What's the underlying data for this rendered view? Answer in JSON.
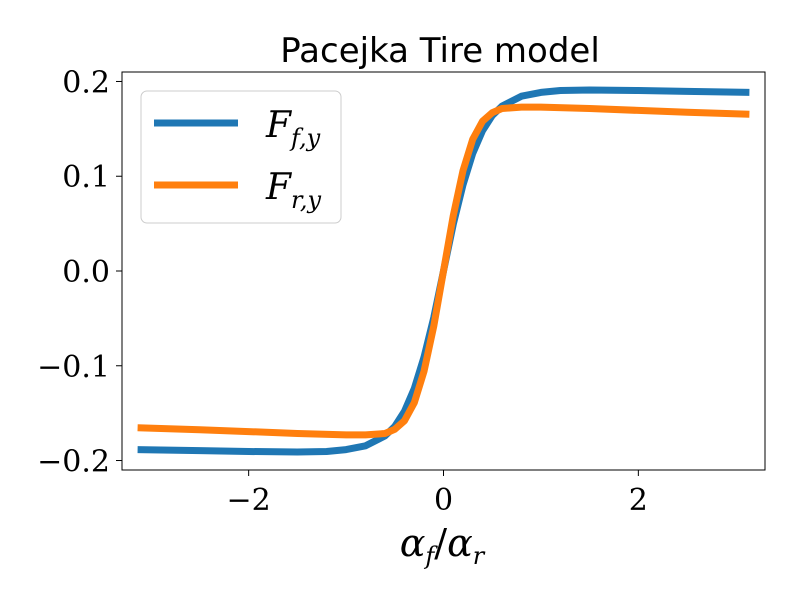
{
  "chart_data": {
    "type": "line",
    "title": "Pacejka Tire model",
    "xlabel": "αf/αr",
    "ylabel": "",
    "xlim": [
      -3.3,
      3.3
    ],
    "ylim": [
      -0.21,
      0.21
    ],
    "xticks": [
      -2,
      0,
      2
    ],
    "xtick_labels": [
      "−2",
      "0",
      "2"
    ],
    "yticks": [
      -0.2,
      -0.1,
      0.0,
      0.1,
      0.2
    ],
    "ytick_labels": [
      "−0.2",
      "−0.1",
      "0.0",
      "0.1",
      "0.2"
    ],
    "grid": false,
    "legend_position": "upper-left",
    "series": [
      {
        "name": "Ff,y",
        "color": "#1f77b4",
        "x": [
          -3.14,
          -2.5,
          -2.0,
          -1.5,
          -1.2,
          -1.0,
          -0.8,
          -0.6,
          -0.5,
          -0.4,
          -0.3,
          -0.2,
          -0.1,
          0.0,
          0.1,
          0.2,
          0.3,
          0.4,
          0.5,
          0.6,
          0.8,
          1.0,
          1.2,
          1.5,
          2.0,
          2.5,
          3.14
        ],
        "y": [
          -0.1885,
          -0.1895,
          -0.1905,
          -0.191,
          -0.1905,
          -0.1885,
          -0.1845,
          -0.174,
          -0.164,
          -0.148,
          -0.124,
          -0.091,
          -0.049,
          0.0,
          0.049,
          0.091,
          0.124,
          0.148,
          0.164,
          0.174,
          0.1845,
          0.1885,
          0.1905,
          0.191,
          0.1905,
          0.1895,
          0.1885
        ]
      },
      {
        "name": "Fr,y",
        "color": "#ff7f0e",
        "x": [
          -3.14,
          -2.5,
          -2.0,
          -1.5,
          -1.0,
          -0.8,
          -0.6,
          -0.5,
          -0.4,
          -0.3,
          -0.2,
          -0.1,
          0.0,
          0.1,
          0.2,
          0.3,
          0.4,
          0.5,
          0.6,
          0.8,
          1.0,
          1.5,
          2.0,
          2.5,
          3.14
        ],
        "y": [
          -0.1655,
          -0.1675,
          -0.1695,
          -0.1715,
          -0.173,
          -0.173,
          -0.1715,
          -0.167,
          -0.158,
          -0.139,
          -0.106,
          -0.058,
          0.0,
          0.058,
          0.106,
          0.139,
          0.158,
          0.167,
          0.1715,
          0.173,
          0.173,
          0.1715,
          0.1695,
          0.1675,
          0.1655
        ]
      }
    ]
  }
}
